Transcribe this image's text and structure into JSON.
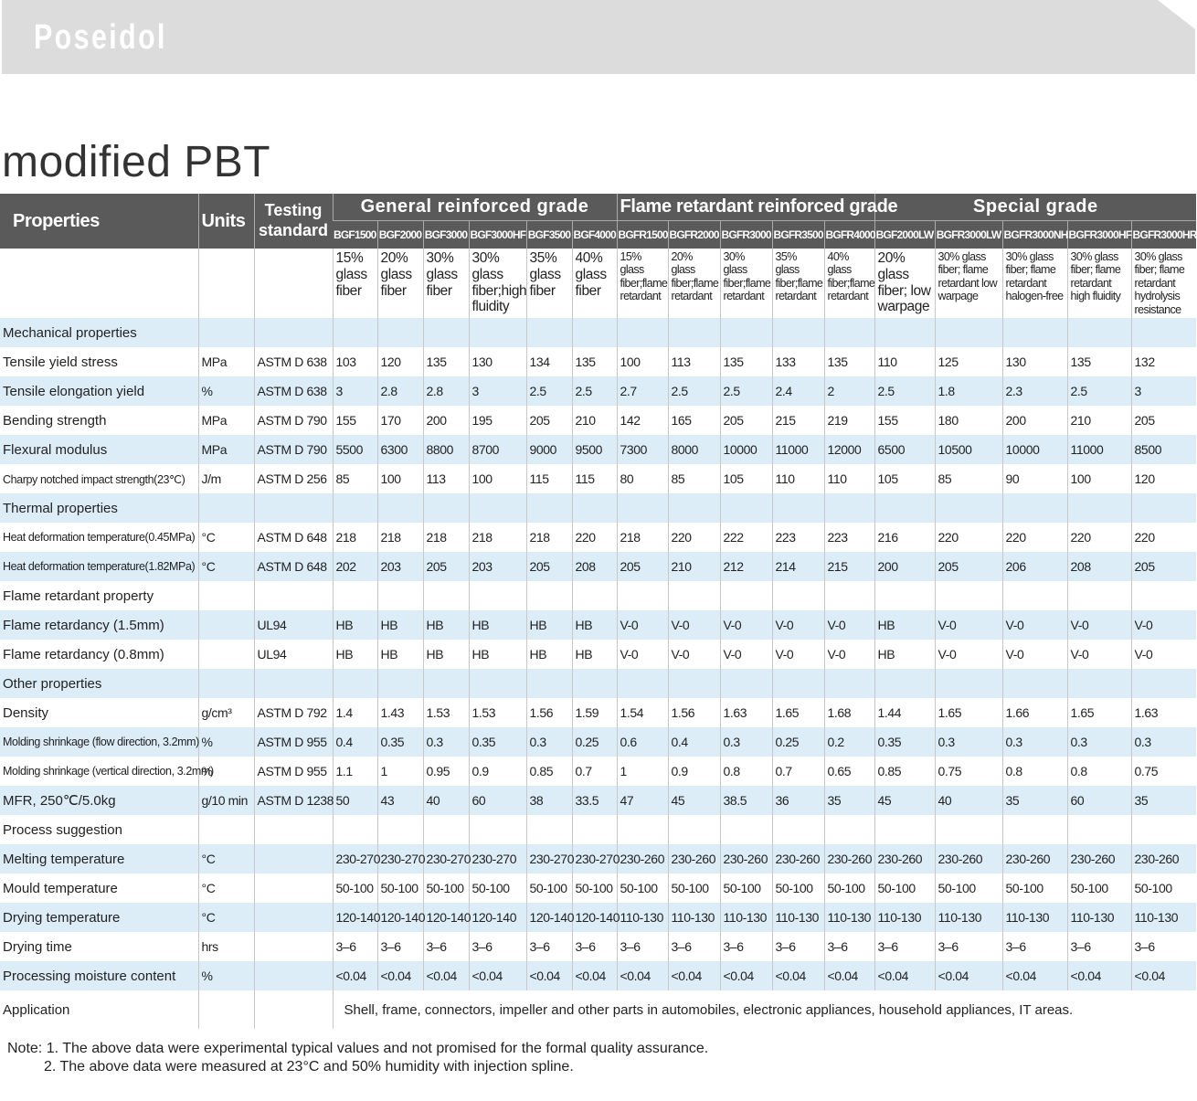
{
  "brand": "Poseidol",
  "title": "modified PBT",
  "colors": {
    "header_bg": "#5b5a5a",
    "row_alt": "#ddedf8",
    "banner": "#dcdcdc"
  },
  "header": {
    "properties": "Properties",
    "units": "Units",
    "testing": "Testing standard",
    "groups": [
      {
        "label": "General reinforced grade",
        "span": 6
      },
      {
        "label": "Flame retardant reinforced grade",
        "span": 5
      },
      {
        "label": "Special grade",
        "span": 5
      }
    ]
  },
  "columns": [
    {
      "code": "BGF1500",
      "desc": "15% glass fiber"
    },
    {
      "code": "BGF2000",
      "desc": "20% glass fiber"
    },
    {
      "code": "BGF3000",
      "desc": "30% glass fiber"
    },
    {
      "code": "BGF3000HF",
      "desc": "30% glass fiber;high fluidity"
    },
    {
      "code": "BGF3500",
      "desc": "35% glass fiber"
    },
    {
      "code": "BGF4000",
      "desc": "40% glass fiber"
    },
    {
      "code": "BGFR1500",
      "desc": "15% glass fiber;flame retardant"
    },
    {
      "code": "BGFR2000",
      "desc": "20% glass fiber;flame retardant"
    },
    {
      "code": "BGFR3000",
      "desc": "30% glass fiber;flame retardant"
    },
    {
      "code": "BGFR3500",
      "desc": "35% glass fiber;flame retardant"
    },
    {
      "code": "BGFR4000",
      "desc": "40% glass fiber;flame retardant"
    },
    {
      "code": "BGF2000LW",
      "desc": "20% glass fiber; low warpage"
    },
    {
      "code": "BGFR3000LW",
      "desc": "30% glass fiber; flame retardant low warpage"
    },
    {
      "code": "BGFR3000NH",
      "desc": "30% glass fiber; flame retardant halogen-free"
    },
    {
      "code": "BGFR3000HF",
      "desc": "30% glass fiber; flame retardant high fluidity"
    },
    {
      "code": "BGFR3000HR",
      "desc": "30% glass fiber; flame retardant hydrolysis resistance"
    }
  ],
  "rows": [
    {
      "section": "Mechanical properties"
    },
    {
      "label": "Tensile yield stress",
      "unit": "MPa",
      "std": "ASTM D 638",
      "values": [
        "103",
        "120",
        "135",
        "130",
        "134",
        "135",
        "100",
        "113",
        "135",
        "133",
        "135",
        "110",
        "125",
        "130",
        "135",
        "132"
      ]
    },
    {
      "label": "Tensile elongation yield",
      "unit": "%",
      "std": "ASTM D 638",
      "values": [
        "3",
        "2.8",
        "2.8",
        "3",
        "2.5",
        "2.5",
        "2.7",
        "2.5",
        "2.5",
        "2.4",
        "2",
        "2.5",
        "1.8",
        "2.3",
        "2.5",
        "3"
      ]
    },
    {
      "label": "Bending strength",
      "unit": "MPa",
      "std": "ASTM D 790",
      "values": [
        "155",
        "170",
        "200",
        "195",
        "205",
        "210",
        "142",
        "165",
        "205",
        "215",
        "219",
        "155",
        "180",
        "200",
        "210",
        "205"
      ]
    },
    {
      "label": "Flexural modulus",
      "unit": "MPa",
      "std": "ASTM D 790",
      "values": [
        "5500",
        "6300",
        "8800",
        "8700",
        "9000",
        "9500",
        "7300",
        "8000",
        "10000",
        "11000",
        "12000",
        "6500",
        "10500",
        "10000",
        "11000",
        "8500"
      ]
    },
    {
      "label": "Charpy notched impact strength(23℃)",
      "small": true,
      "unit": "J/m",
      "std": "ASTM D 256",
      "values": [
        "85",
        "100",
        "113",
        "100",
        "115",
        "115",
        "80",
        "85",
        "105",
        "110",
        "110",
        "105",
        "85",
        "90",
        "100",
        "120"
      ]
    },
    {
      "section": "Thermal properties"
    },
    {
      "label": "Heat deformation temperature(0.45MPa)",
      "small": true,
      "unit": "°C",
      "std": "ASTM D 648",
      "values": [
        "218",
        "218",
        "218",
        "218",
        "218",
        "220",
        "218",
        "220",
        "222",
        "223",
        "223",
        "216",
        "220",
        "220",
        "220",
        "220"
      ]
    },
    {
      "label": "Heat deformation temperature(1.82MPa)",
      "small": true,
      "unit": "°C",
      "std": "ASTM D 648",
      "values": [
        "202",
        "203",
        "205",
        "203",
        "205",
        "208",
        "205",
        "210",
        "212",
        "214",
        "215",
        "200",
        "205",
        "206",
        "208",
        "205"
      ]
    },
    {
      "section": "Flame retardant property"
    },
    {
      "label": "Flame retardancy (1.5mm)",
      "unit": "",
      "std": "UL94",
      "values": [
        "HB",
        "HB",
        "HB",
        "HB",
        "HB",
        "HB",
        "V-0",
        "V-0",
        "V-0",
        "V-0",
        "V-0",
        "HB",
        "V-0",
        "V-0",
        "V-0",
        "V-0"
      ]
    },
    {
      "label": "Flame retardancy (0.8mm)",
      "unit": "",
      "std": "UL94",
      "values": [
        "HB",
        "HB",
        "HB",
        "HB",
        "HB",
        "HB",
        "V-0",
        "V-0",
        "V-0",
        "V-0",
        "V-0",
        "HB",
        "V-0",
        "V-0",
        "V-0",
        "V-0"
      ]
    },
    {
      "section": "Other properties"
    },
    {
      "label": "Density",
      "unit": "g/cm³",
      "std": "ASTM D 792",
      "values": [
        "1.4",
        "1.43",
        "1.53",
        "1.53",
        "1.56",
        "1.59",
        "1.54",
        "1.56",
        "1.63",
        "1.65",
        "1.68",
        "1.44",
        "1.65",
        "1.66",
        "1.65",
        "1.63"
      ]
    },
    {
      "label": "Molding shrinkage (flow direction, 3.2mm)",
      "small": true,
      "unit": "%",
      "std": "ASTM D 955",
      "values": [
        "0.4",
        "0.35",
        "0.3",
        "0.35",
        "0.3",
        "0.25",
        "0.6",
        "0.4",
        "0.3",
        "0.25",
        "0.2",
        "0.35",
        "0.3",
        "0.3",
        "0.3",
        "0.3"
      ]
    },
    {
      "label": "Molding shrinkage (vertical direction, 3.2mm)",
      "small": true,
      "unit": "%",
      "std": "ASTM D 955",
      "values": [
        "1.1",
        "1",
        "0.95",
        "0.9",
        "0.85",
        "0.7",
        "1",
        "0.9",
        "0.8",
        "0.7",
        "0.65",
        "0.85",
        "0.75",
        "0.8",
        "0.8",
        "0.75"
      ]
    },
    {
      "label": "MFR, 250℃/5.0kg",
      "unit": "g/10 min",
      "std": "ASTM D 1238",
      "values": [
        "50",
        "43",
        "40",
        "60",
        "38",
        "33.5",
        "47",
        "45",
        "38.5",
        "36",
        "35",
        "45",
        "40",
        "35",
        "60",
        "35"
      ]
    },
    {
      "section": "Process suggestion"
    },
    {
      "label": "Melting temperature",
      "unit": "°C",
      "std": "",
      "values": [
        "230-270",
        "230-270",
        "230-270",
        "230-270",
        "230-270",
        "230-270",
        "230-260",
        "230-260",
        "230-260",
        "230-260",
        "230-260",
        "230-260",
        "230-260",
        "230-260",
        "230-260",
        "230-260"
      ]
    },
    {
      "label": "Mould temperature",
      "unit": "°C",
      "std": "",
      "values": [
        "50-100",
        "50-100",
        "50-100",
        "50-100",
        "50-100",
        "50-100",
        "50-100",
        "50-100",
        "50-100",
        "50-100",
        "50-100",
        "50-100",
        "50-100",
        "50-100",
        "50-100",
        "50-100"
      ]
    },
    {
      "label": "Drying temperature",
      "unit": "°C",
      "std": "",
      "values": [
        "120-140",
        "120-140",
        "120-140",
        "120-140",
        "120-140",
        "120-140",
        "110-130",
        "110-130",
        "110-130",
        "110-130",
        "110-130",
        "110-130",
        "110-130",
        "110-130",
        "110-130",
        "110-130"
      ]
    },
    {
      "label": "Drying time",
      "unit": "hrs",
      "std": "",
      "values": [
        "3–6",
        "3–6",
        "3–6",
        "3–6",
        "3–6",
        "3–6",
        "3–6",
        "3–6",
        "3–6",
        "3–6",
        "3–6",
        "3–6",
        "3–6",
        "3–6",
        "3–6",
        "3–6"
      ]
    },
    {
      "label": "Processing moisture content",
      "unit": "%",
      "std": "",
      "values": [
        "<0.04",
        "<0.04",
        "<0.04",
        "<0.04",
        "<0.04",
        "<0.04",
        "<0.04",
        "<0.04",
        "<0.04",
        "<0.04",
        "<0.04",
        "<0.04",
        "<0.04",
        "<0.04",
        "<0.04",
        "<0.04"
      ]
    }
  ],
  "application": {
    "label": "Application",
    "text": "Shell, frame, connectors, impeller and other parts in automobiles, electronic appliances, household appliances, IT areas."
  },
  "notes": [
    "Note: 1. The above data were experimental typical values and not promised for the formal quality assurance.",
    "2. The above data were measured at 23°C and 50% humidity with injection spline."
  ]
}
